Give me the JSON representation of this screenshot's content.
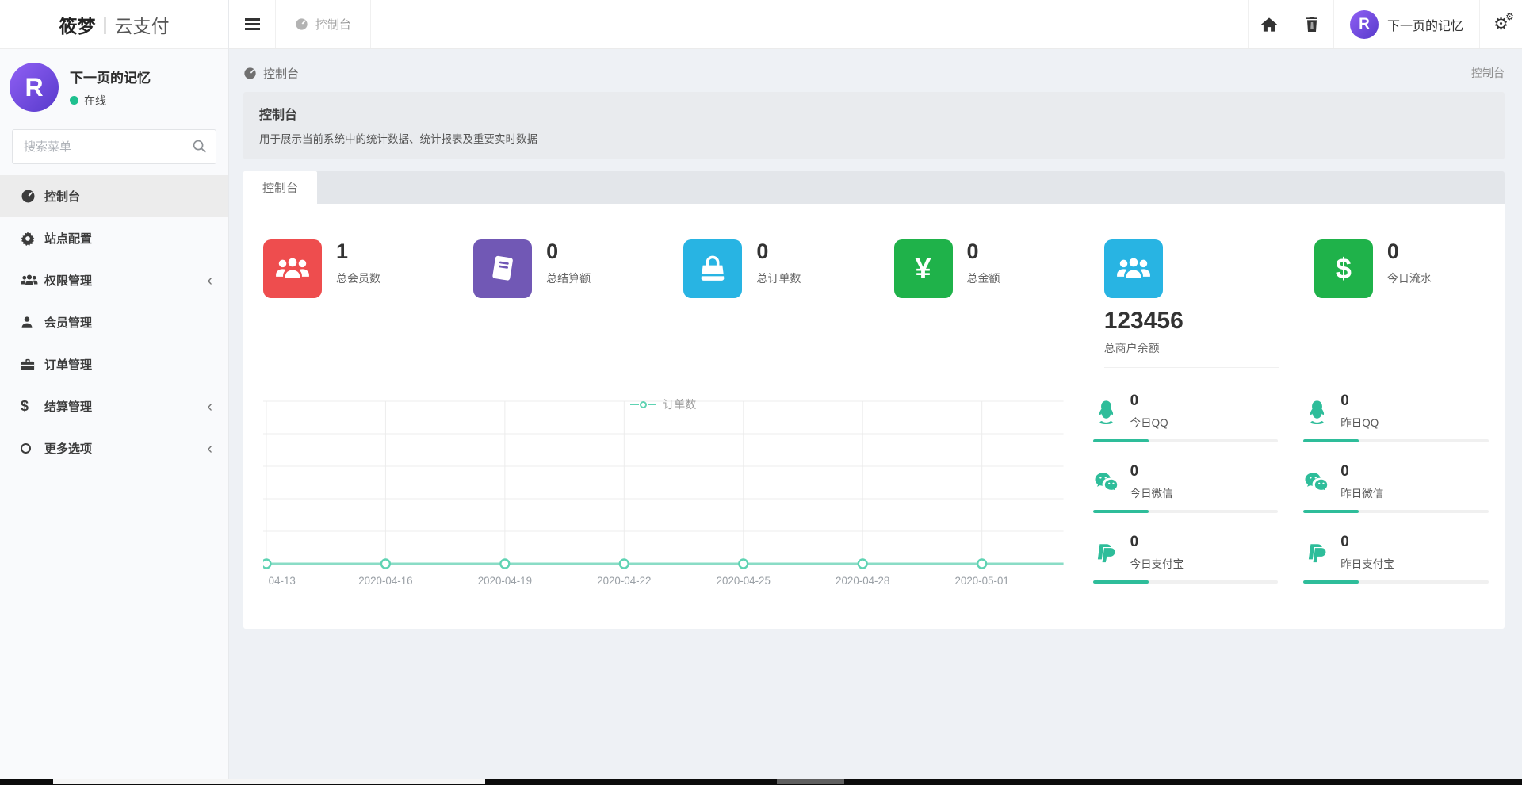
{
  "brand": {
    "name_bold": "筱梦",
    "separator": "|",
    "name_light": "云支付"
  },
  "navbar": {
    "tab_label": "控制台",
    "user_name": "下一页的记忆",
    "icons": [
      "hamburger-icon",
      "gauge-icon",
      "home-icon",
      "trash-icon",
      "cogs-icon"
    ]
  },
  "sidebar": {
    "user": {
      "name": "下一页的记忆",
      "status": "在线",
      "avatar_letter": "R"
    },
    "search_placeholder": "搜索菜单",
    "menu": [
      {
        "label": "控制台",
        "icon": "gauge-icon",
        "active": true,
        "chevron": false
      },
      {
        "label": "站点配置",
        "icon": "gear-icon",
        "active": false,
        "chevron": false
      },
      {
        "label": "权限管理",
        "icon": "users-icon",
        "active": false,
        "chevron": true
      },
      {
        "label": "会员管理",
        "icon": "user-icon",
        "active": false,
        "chevron": false
      },
      {
        "label": "订单管理",
        "icon": "briefcase-icon",
        "active": false,
        "chevron": false
      },
      {
        "label": "结算管理",
        "icon": "dollar-icon",
        "active": false,
        "chevron": true
      },
      {
        "label": "更多选项",
        "icon": "circle-icon",
        "active": false,
        "chevron": true
      }
    ],
    "chevron_glyph": "‹"
  },
  "breadcrumb": {
    "left": "控制台",
    "right": "控制台"
  },
  "page_header": {
    "title": "控制台",
    "description": "用于展示当前系统中的统计数据、统计报表及重要实时数据"
  },
  "tabs": [
    {
      "label": "控制台",
      "active": true
    }
  ],
  "stats": [
    {
      "value": "1",
      "label": "总会员数",
      "icon": "group-icon",
      "color": "#ee4d4e",
      "layout": "horizontal"
    },
    {
      "value": "0",
      "label": "总结算额",
      "icon": "book-icon",
      "color": "#7158b5",
      "layout": "horizontal"
    },
    {
      "value": "0",
      "label": "总订单数",
      "icon": "bag-icon",
      "color": "#28b4e3",
      "layout": "horizontal"
    },
    {
      "value": "0",
      "label": "总金额",
      "icon": "yen-icon",
      "color": "#1fb24a",
      "layout": "horizontal",
      "glyph": "¥"
    },
    {
      "value": "123456",
      "label": "总商户余额",
      "icon": "group-icon",
      "color": "#28b4e3",
      "layout": "vertical"
    },
    {
      "value": "0",
      "label": "今日流水",
      "icon": "dollar-icon",
      "color": "#1fb24a",
      "layout": "horizontal",
      "glyph": "$"
    }
  ],
  "mini_stats": {
    "accent_color": "#2ebd9a",
    "today": [
      {
        "value": "0",
        "label": "今日QQ",
        "icon": "qq-icon",
        "percent": 30
      },
      {
        "value": "0",
        "label": "今日微信",
        "icon": "wechat-icon",
        "percent": 30
      },
      {
        "value": "0",
        "label": "今日支付宝",
        "icon": "paypal-icon",
        "percent": 30
      }
    ],
    "yesterday": [
      {
        "value": "0",
        "label": "昨日QQ",
        "icon": "qq-icon",
        "percent": 30
      },
      {
        "value": "0",
        "label": "昨日微信",
        "icon": "wechat-icon",
        "percent": 30
      },
      {
        "value": "0",
        "label": "昨日支付宝",
        "icon": "paypal-icon",
        "percent": 30
      }
    ]
  },
  "chart_data": {
    "type": "line",
    "x": [
      "04-13",
      "2020-04-16",
      "2020-04-19",
      "2020-04-22",
      "2020-04-25",
      "2020-04-28",
      "2020-05-01"
    ],
    "series": [
      {
        "name": "订单数",
        "values": [
          0,
          0,
          0,
          0,
          0,
          0,
          0
        ]
      }
    ],
    "ylim": [
      0,
      5
    ],
    "grid": true,
    "legend_position": "top-center",
    "line_color": "#8adcc6",
    "marker_color": "#5fd3b3",
    "grid_color": "#ececec",
    "tick_color": "#9aa0a6"
  }
}
